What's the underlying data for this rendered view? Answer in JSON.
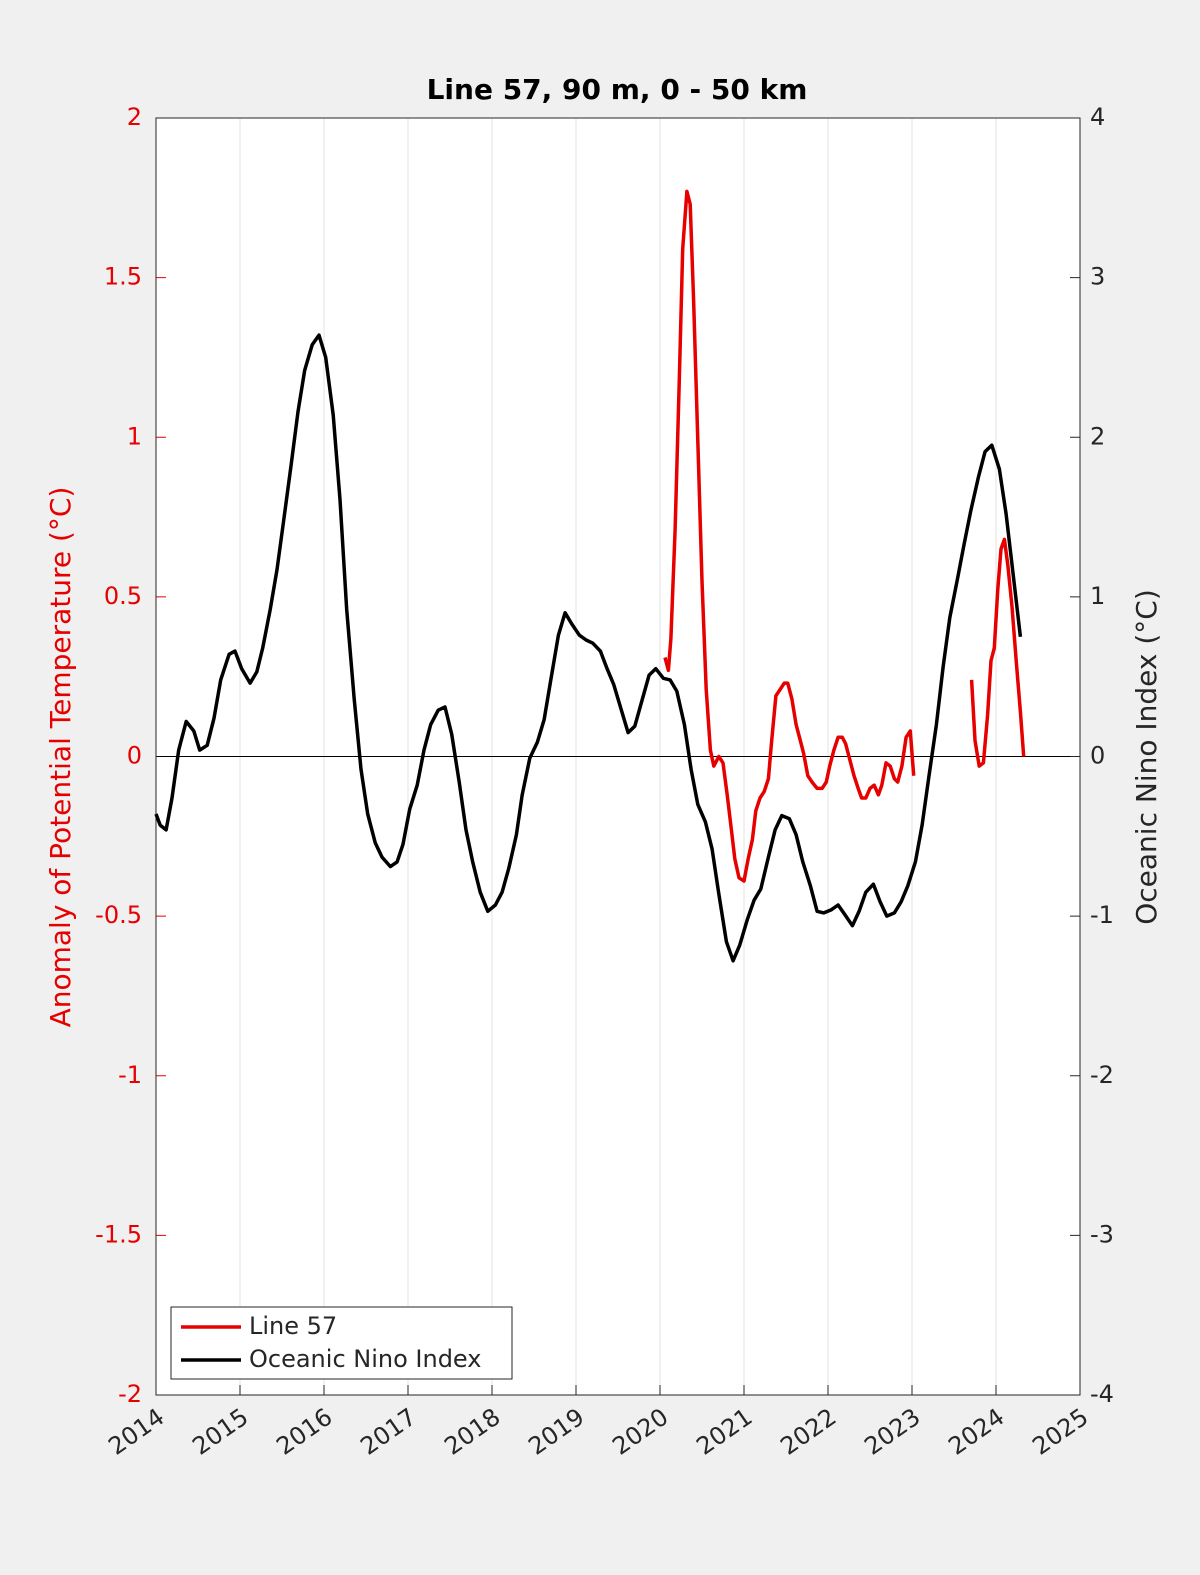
{
  "chart_data": {
    "type": "line",
    "title": "Line 57, 90 m, 0 - 50 km",
    "ylabel": "Anomaly of Potential Temperature (°C)",
    "y2label": "Oceanic Nino Index (°C)",
    "ycolor": "#e60000",
    "xlim": [
      2014,
      2025
    ],
    "xticks": [
      2014,
      2015,
      2016,
      2017,
      2018,
      2019,
      2020,
      2021,
      2022,
      2023,
      2024,
      2025
    ],
    "ylim": [
      -2,
      2
    ],
    "yticks": [
      -2,
      -1.5,
      -1,
      -0.5,
      0,
      0.5,
      1,
      1.5,
      2
    ],
    "y2lim": [
      -4,
      4
    ],
    "y2ticks": [
      -4,
      -3,
      -2,
      -1,
      0,
      1,
      2,
      3,
      4
    ],
    "grid": "x",
    "legend": "lower left",
    "series": [
      {
        "name": "Line 57",
        "color": "#e60000",
        "x": [
          2020.06,
          2020.1,
          2020.13,
          2020.18,
          2020.23,
          2020.27,
          2020.32,
          2020.36,
          2020.4,
          2020.45,
          2020.5,
          2020.55,
          2020.6,
          2020.64,
          2020.7,
          2020.75,
          2020.8,
          2020.85,
          2020.89,
          2020.94,
          2021.0,
          2021.05,
          2021.1,
          2021.14,
          2021.19,
          2021.24,
          2021.29,
          2021.33,
          2021.38,
          2021.43,
          2021.48,
          2021.52,
          2021.57,
          2021.62,
          2021.67,
          2021.71,
          2021.76,
          2021.81,
          2021.87,
          2021.93,
          2021.98,
          2022.02,
          2022.07,
          2022.12,
          2022.17,
          2022.21,
          2022.26,
          2022.31,
          2022.36,
          2022.4,
          2022.45,
          2022.5,
          2022.55,
          2022.6,
          2022.64,
          2022.69,
          2022.74,
          2022.79,
          2022.83,
          2022.88,
          2022.93,
          2022.98,
          2023.02,
          null,
          2023.71,
          2023.75,
          2023.8,
          2023.85,
          2023.9,
          2023.94,
          2023.98,
          2024.02,
          2024.06,
          2024.1,
          2024.14,
          2024.19,
          2024.24,
          2024.29,
          2024.33
        ],
        "values": [
          0.31,
          0.27,
          0.37,
          0.71,
          1.18,
          1.59,
          1.77,
          1.73,
          1.43,
          0.99,
          0.55,
          0.21,
          0.02,
          -0.03,
          0,
          -0.02,
          -0.12,
          -0.23,
          -0.32,
          -0.38,
          -0.39,
          -0.32,
          -0.26,
          -0.17,
          -0.13,
          -0.11,
          -0.07,
          0.05,
          0.19,
          0.21,
          0.23,
          0.23,
          0.18,
          0.1,
          0.05,
          0.01,
          -0.06,
          -0.08,
          -0.1,
          -0.1,
          -0.08,
          -0.03,
          0.02,
          0.06,
          0.06,
          0.04,
          -0.01,
          -0.06,
          -0.1,
          -0.13,
          -0.13,
          -0.1,
          -0.09,
          -0.12,
          -0.09,
          -0.02,
          -0.03,
          -0.07,
          -0.08,
          -0.03,
          0.06,
          0.08,
          -0.06,
          null,
          0.24,
          0.05,
          -0.03,
          -0.02,
          0.13,
          0.3,
          0.34,
          0.52,
          0.65,
          0.68,
          0.6,
          0.47,
          0.3,
          0.14,
          0
        ]
      },
      {
        "name": "Oceanic Nino Index",
        "color": "#000000",
        "axis": "y2",
        "x": [
          2014.0,
          2014.05,
          2014.12,
          2014.19,
          2014.27,
          2014.36,
          2014.45,
          2014.52,
          2014.61,
          2014.69,
          2014.77,
          2014.87,
          2014.94,
          2015.02,
          2015.12,
          2015.2,
          2015.27,
          2015.36,
          2015.44,
          2015.52,
          2015.61,
          2015.69,
          2015.77,
          2015.86,
          2015.94,
          2016.02,
          2016.11,
          2016.19,
          2016.27,
          2016.36,
          2016.44,
          2016.52,
          2016.61,
          2016.69,
          2016.79,
          2016.87,
          2016.94,
          2017.02,
          2017.11,
          2017.19,
          2017.27,
          2017.36,
          2017.44,
          2017.52,
          2017.61,
          2017.69,
          2017.77,
          2017.86,
          2017.95,
          2018.04,
          2018.12,
          2018.2,
          2018.29,
          2018.36,
          2018.45,
          2018.54,
          2018.62,
          2018.7,
          2018.79,
          2018.87,
          2018.95,
          2019.04,
          2019.12,
          2019.2,
          2019.29,
          2019.37,
          2019.45,
          2019.54,
          2019.62,
          2019.7,
          2019.79,
          2019.87,
          2019.95,
          2020.04,
          2020.12,
          2020.2,
          2020.29,
          2020.37,
          2020.45,
          2020.54,
          2020.62,
          2020.7,
          2020.79,
          2020.87,
          2020.95,
          2021.04,
          2021.12,
          2021.2,
          2021.29,
          2021.37,
          2021.45,
          2021.54,
          2021.62,
          2021.7,
          2021.79,
          2021.87,
          2021.95,
          2022.04,
          2022.12,
          2022.2,
          2022.29,
          2022.37,
          2022.45,
          2022.54,
          2022.62,
          2022.7,
          2022.79,
          2022.87,
          2022.95,
          2023.04,
          2023.12,
          2023.2,
          2023.29,
          2023.37,
          2023.45,
          2023.54,
          2023.62,
          2023.7,
          2023.79,
          2023.87,
          2023.95,
          2024.04,
          2024.12,
          2024.2,
          2024.29
        ],
        "values": [
          -0.36,
          -0.43,
          -0.46,
          -0.26,
          0.04,
          0.22,
          0.16,
          0.04,
          0.07,
          0.24,
          0.48,
          0.64,
          0.66,
          0.55,
          0.46,
          0.53,
          0.68,
          0.92,
          1.17,
          1.48,
          1.83,
          2.16,
          2.42,
          2.58,
          2.64,
          2.5,
          2.14,
          1.61,
          0.92,
          0.36,
          -0.08,
          -0.36,
          -0.54,
          -0.63,
          -0.69,
          -0.66,
          -0.55,
          -0.33,
          -0.18,
          0.04,
          0.2,
          0.29,
          0.31,
          0.14,
          -0.16,
          -0.46,
          -0.66,
          -0.85,
          -0.97,
          -0.93,
          -0.85,
          -0.7,
          -0.49,
          -0.24,
          -0.01,
          0.09,
          0.23,
          0.48,
          0.76,
          0.9,
          0.83,
          0.76,
          0.73,
          0.71,
          0.66,
          0.55,
          0.45,
          0.29,
          0.15,
          0.19,
          0.36,
          0.51,
          0.55,
          0.49,
          0.48,
          0.41,
          0.2,
          -0.08,
          -0.3,
          -0.41,
          -0.58,
          -0.86,
          -1.16,
          -1.28,
          -1.18,
          -1.02,
          -0.9,
          -0.83,
          -0.63,
          -0.46,
          -0.37,
          -0.39,
          -0.49,
          -0.66,
          -0.81,
          -0.97,
          -0.98,
          -0.96,
          -0.93,
          -0.99,
          -1.06,
          -0.97,
          -0.85,
          -0.8,
          -0.91,
          -1.0,
          -0.98,
          -0.91,
          -0.81,
          -0.66,
          -0.43,
          -0.13,
          0.2,
          0.56,
          0.87,
          1.11,
          1.33,
          1.54,
          1.75,
          1.91,
          1.95,
          1.8,
          1.52,
          1.16,
          0.75
        ]
      }
    ]
  }
}
